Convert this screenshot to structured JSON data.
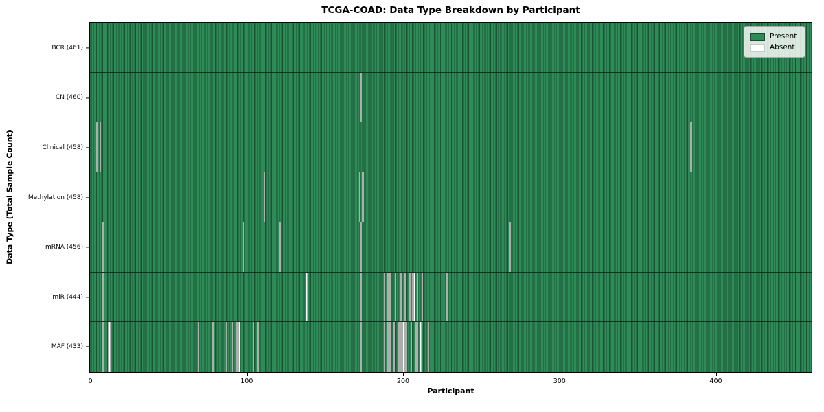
{
  "title": "TCGA-COAD: Data Type Breakdown by Participant",
  "legend": {
    "present_label": "Present",
    "absent_label": "Absent"
  },
  "colors": {
    "present": "#2e8b57",
    "absent": "#ffffff",
    "bar_edge": "#0a2618"
  },
  "chart_data": {
    "type": "heatmap",
    "title": "TCGA-COAD: Data Type Breakdown by Participant",
    "xlabel": "Participant",
    "ylabel": "Data Type (Total Sample Count)",
    "x_ticks": [
      0,
      100,
      200,
      300,
      400
    ],
    "x_range": [
      0,
      461
    ],
    "n_participants": 461,
    "grid": false,
    "legend_position": "upper right",
    "legend_entries": [
      "Present",
      "Absent"
    ],
    "rows": [
      {
        "name": "BCR",
        "label": "BCR (461)",
        "total_present": 461,
        "absent_participants": []
      },
      {
        "name": "CN",
        "label": "CN (460)",
        "total_present": 460,
        "absent_participants": [
          173
        ]
      },
      {
        "name": "Clinical",
        "label": "Clinical (458)",
        "total_present": 458,
        "absent_participants": [
          4,
          6,
          384
        ]
      },
      {
        "name": "Methylation",
        "label": "Methylation (458)",
        "total_present": 458,
        "absent_participants": [
          111,
          172,
          174
        ]
      },
      {
        "name": "mRNA",
        "label": "mRNA (456)",
        "total_present": 456,
        "absent_participants": [
          8,
          98,
          121,
          173,
          268
        ]
      },
      {
        "name": "miR",
        "label": "miR (444)",
        "total_present": 444,
        "absent_participants": [
          8,
          138,
          173,
          188,
          190,
          191,
          192,
          195,
          198,
          199,
          201,
          204,
          206,
          207,
          209,
          212,
          228
        ]
      },
      {
        "name": "MAF",
        "label": "MAF (433)",
        "total_present": 433,
        "absent_participants": [
          8,
          12,
          69,
          78,
          87,
          91,
          93,
          94,
          95,
          104,
          107,
          173,
          188,
          190,
          191,
          192,
          194,
          197,
          198,
          199,
          200,
          201,
          202,
          205,
          208,
          209,
          211,
          216
        ]
      }
    ]
  }
}
